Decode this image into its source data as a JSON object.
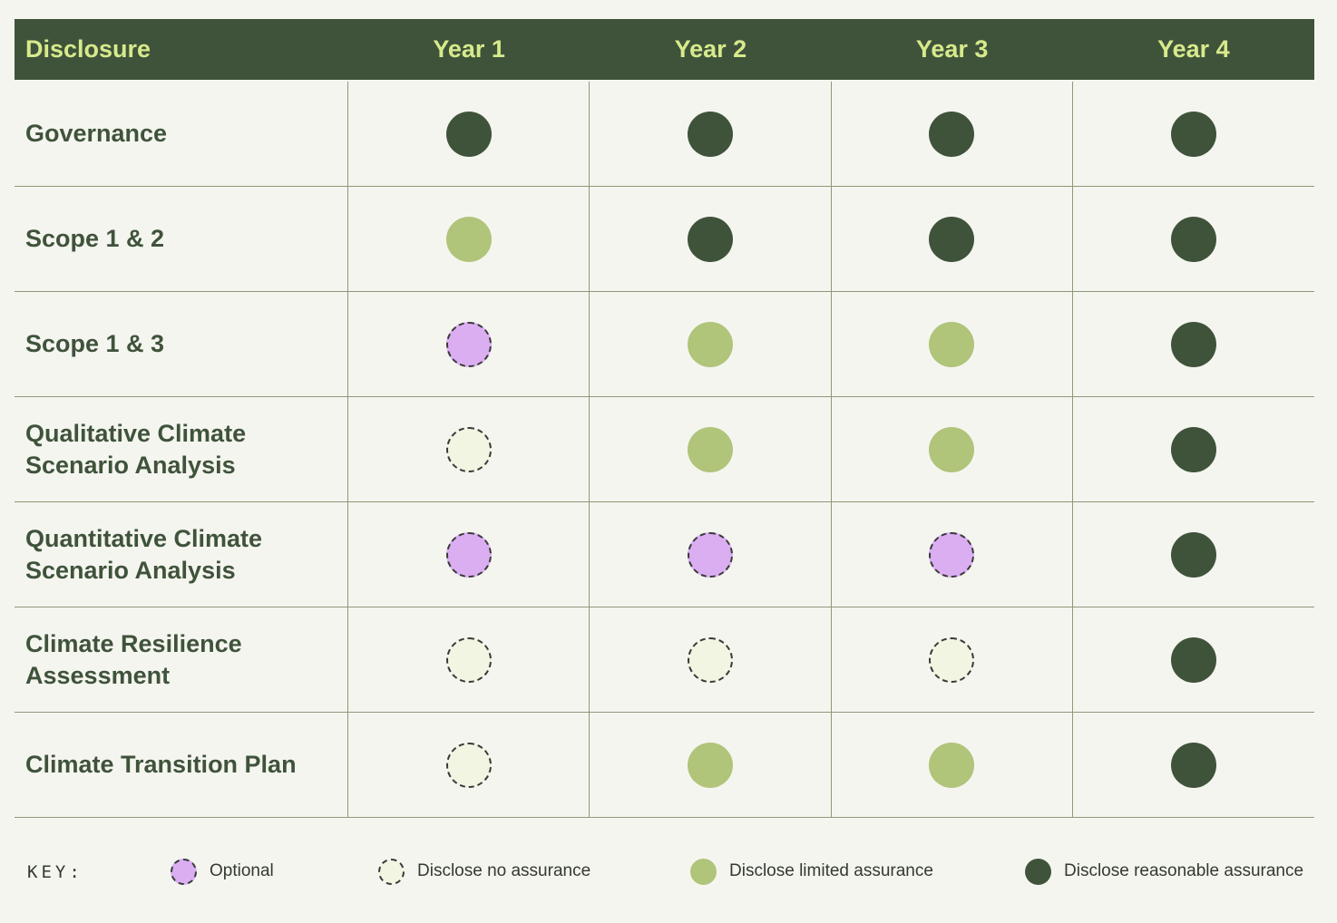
{
  "chart_data": {
    "type": "table",
    "columns": [
      "Disclosure",
      "Year 1",
      "Year 2",
      "Year 3",
      "Year 4"
    ],
    "rows": [
      {
        "label": "Governance",
        "values": [
          "reasonable",
          "reasonable",
          "reasonable",
          "reasonable"
        ]
      },
      {
        "label": "Scope 1 & 2",
        "values": [
          "limited",
          "reasonable",
          "reasonable",
          "reasonable"
        ]
      },
      {
        "label": "Scope 1 & 3",
        "values": [
          "optional",
          "limited",
          "limited",
          "reasonable"
        ]
      },
      {
        "label": "Qualitative Climate Scenario Analysis",
        "values": [
          "none",
          "limited",
          "limited",
          "reasonable"
        ]
      },
      {
        "label": "Quantitative Climate Scenario Analysis",
        "values": [
          "optional",
          "optional",
          "optional",
          "reasonable"
        ]
      },
      {
        "label": "Climate Resilience Assessment",
        "values": [
          "none",
          "none",
          "none",
          "reasonable"
        ]
      },
      {
        "label": "Climate Transition Plan",
        "values": [
          "none",
          "limited",
          "limited",
          "reasonable"
        ]
      }
    ],
    "key": {
      "title": "KEY:",
      "items": [
        {
          "id": "optional",
          "label": "Optional"
        },
        {
          "id": "none",
          "label": "Disclose no assurance"
        },
        {
          "id": "limited",
          "label": "Disclose limited assurance"
        },
        {
          "id": "reasonable",
          "label": "Disclose reasonable assurance"
        }
      ]
    },
    "colors": {
      "header_bg": "#3f533b",
      "header_text": "#d7ea8b",
      "reasonable": "#3f533b",
      "limited": "#b0c47a",
      "optional": "#dbaef2",
      "none": "#f1f5e2"
    }
  }
}
